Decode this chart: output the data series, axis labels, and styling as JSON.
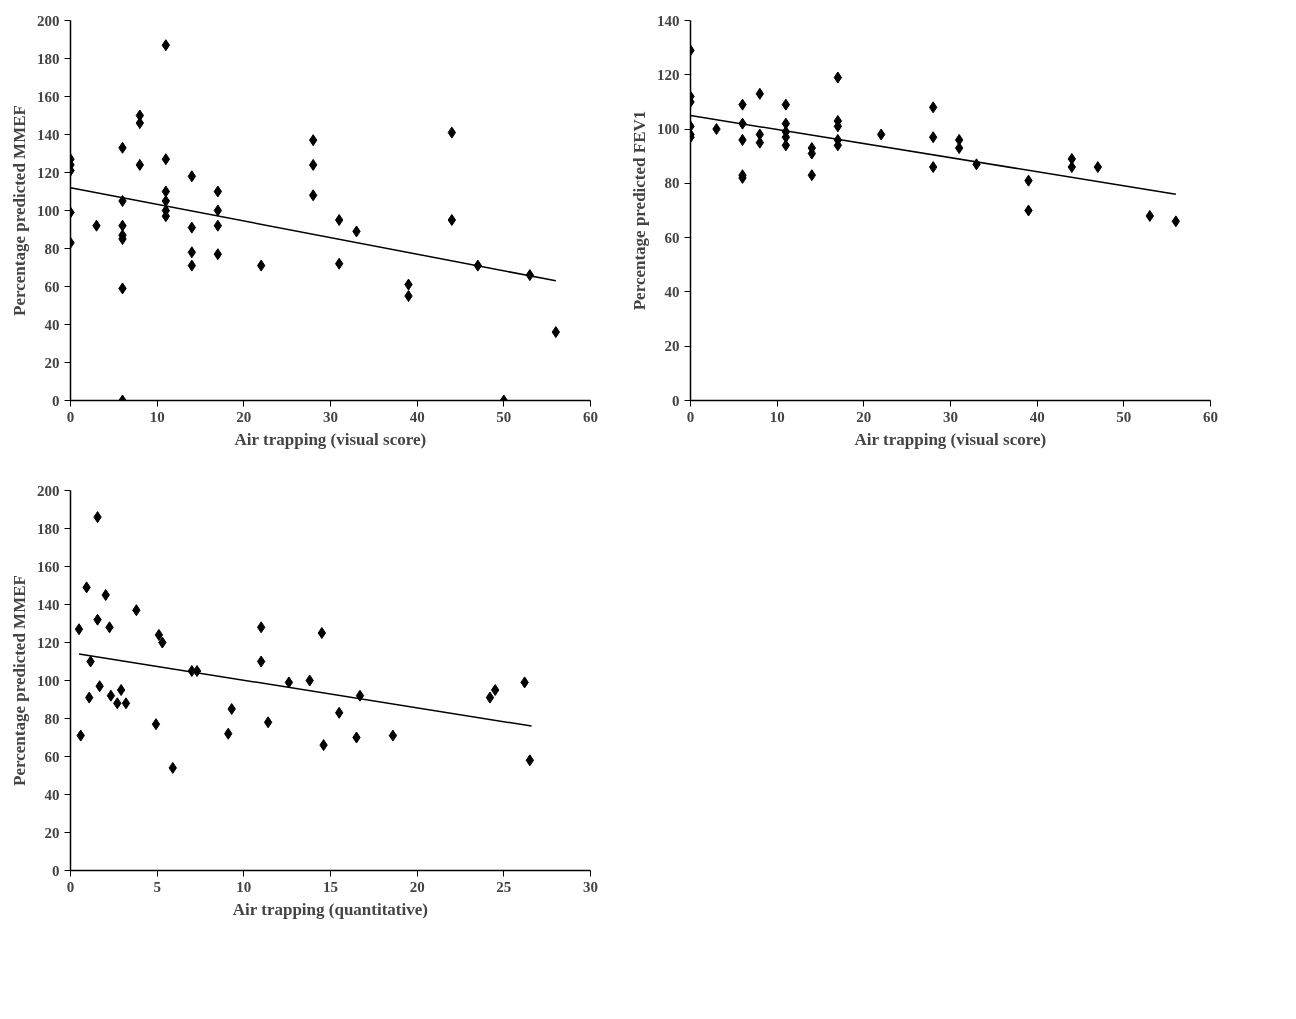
{
  "chart_data": [
    {
      "type": "scatter",
      "xlabel": "Air trapping (visual score)",
      "ylabel": "Percentage predicted MMEF",
      "xlim": [
        0,
        60
      ],
      "ylim": [
        0,
        200
      ],
      "xticks": [
        0,
        10,
        20,
        30,
        40,
        50,
        60
      ],
      "yticks": [
        0,
        20,
        40,
        60,
        80,
        100,
        120,
        140,
        160,
        180,
        200
      ],
      "marker": "diamond",
      "grid": false,
      "series": [
        {
          "color": "#000000",
          "x": [
            0,
            0,
            0,
            0,
            0,
            3,
            6,
            6,
            6,
            6,
            6,
            6,
            6,
            8,
            8,
            8,
            11,
            11,
            11,
            11,
            11,
            11,
            14,
            14,
            14,
            14,
            17,
            17,
            17,
            17,
            22,
            28,
            28,
            28,
            31,
            31,
            33,
            39,
            39,
            44,
            44,
            47,
            50,
            53,
            56
          ],
          "values": [
            127,
            124,
            121,
            99,
            83,
            92,
            133,
            105,
            92,
            87,
            85,
            59,
            0,
            150,
            146,
            124,
            187,
            127,
            110,
            105,
            100,
            97,
            118,
            91,
            78,
            71,
            110,
            100,
            92,
            77,
            71,
            137,
            124,
            108,
            95,
            72,
            89,
            61,
            55,
            141,
            95,
            71,
            0,
            66,
            36
          ]
        },
        {
          "type": "line",
          "marker": "none",
          "color": "#000000",
          "x": [
            0,
            56
          ],
          "values": [
            112,
            63
          ]
        }
      ]
    },
    {
      "type": "scatter",
      "xlabel": "Air trapping (visual score)",
      "ylabel": "Percentage predicted FEV1",
      "xlim": [
        0,
        60
      ],
      "ylim": [
        0,
        140
      ],
      "xticks": [
        0,
        10,
        20,
        30,
        40,
        50,
        60
      ],
      "yticks": [
        0,
        20,
        40,
        60,
        80,
        100,
        120,
        140
      ],
      "marker": "diamond",
      "grid": false,
      "series": [
        {
          "color": "#000000",
          "x": [
            0,
            0,
            0,
            0,
            0,
            0,
            3,
            6,
            6,
            6,
            6,
            6,
            8,
            8,
            8,
            11,
            11,
            11,
            11,
            11,
            14,
            14,
            14,
            17,
            17,
            17,
            17,
            17,
            22,
            28,
            28,
            28,
            31,
            31,
            33,
            39,
            39,
            44,
            44,
            47,
            53,
            56
          ],
          "values": [
            129,
            112,
            110,
            101,
            98,
            97,
            100,
            109,
            102,
            96,
            83,
            82,
            113,
            98,
            95,
            109,
            102,
            99,
            97,
            94,
            93,
            91,
            83,
            119,
            103,
            101,
            96,
            94,
            98,
            108,
            97,
            86,
            96,
            93,
            87,
            81,
            70,
            89,
            86,
            86,
            68,
            66
          ]
        },
        {
          "type": "line",
          "marker": "none",
          "color": "#000000",
          "x": [
            0,
            56
          ],
          "values": [
            105,
            76
          ]
        }
      ]
    },
    {
      "type": "scatter",
      "xlabel": "Air trapping (quantitative)",
      "ylabel": "Percentage predicted MMEF",
      "xlim": [
        0,
        30
      ],
      "ylim": [
        0,
        200
      ],
      "xticks": [
        0,
        5,
        10,
        15,
        20,
        25,
        30
      ],
      "yticks": [
        0,
        20,
        40,
        60,
        80,
        100,
        120,
        140,
        160,
        180,
        200
      ],
      "marker": "diamond",
      "grid": false,
      "series": [
        {
          "color": "#000000",
          "x": [
            1.56,
            0.93,
            2.03,
            3.8,
            1.56,
            0.49,
            2.25,
            5.1,
            5.3,
            11.0,
            14.5,
            1.16,
            11.0,
            7.0,
            7.3,
            12.6,
            13.8,
            26.2,
            16.7,
            24.2,
            24.5,
            1.68,
            1.08,
            2.33,
            2.92,
            2.7,
            3.2,
            9.3,
            15.5,
            4.93,
            11.4,
            0.59,
            9.1,
            14.6,
            16.5,
            18.6,
            5.9,
            26.5
          ],
          "values": [
            186,
            149,
            145,
            137,
            132,
            127,
            128,
            124,
            120,
            128,
            125,
            110,
            110,
            105,
            105,
            99,
            100,
            99,
            92,
            91,
            95,
            97,
            91,
            92,
            95,
            88,
            88,
            85,
            83,
            77,
            78,
            71,
            72,
            66,
            70,
            71,
            54,
            58
          ]
        },
        {
          "type": "line",
          "marker": "none",
          "color": "#000000",
          "x": [
            0.49,
            26.6
          ],
          "values": [
            114,
            76
          ]
        }
      ]
    }
  ]
}
